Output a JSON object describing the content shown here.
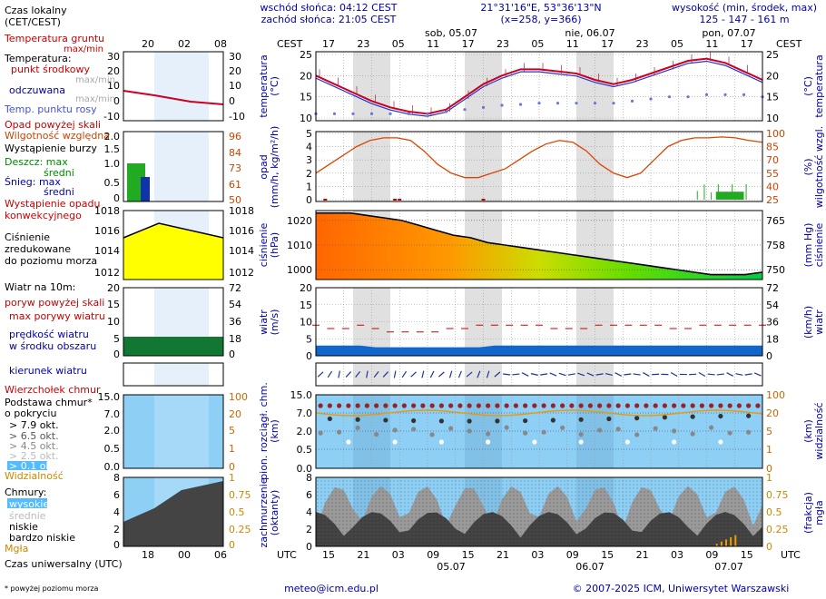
{
  "header": {
    "local_time_label": "Czas lokalny",
    "local_time_tz": "(CET/CEST)",
    "sunrise": "wschód słońca: 04:12 CEST",
    "sunset": "zachód słońca: 21:05 CEST",
    "coords": "21°31'16\"E, 53°36'13\"N",
    "grid": "(x=258,  y=366)",
    "height_label": "wysokość (min, środek, max)",
    "height_values": "125 - 147 - 161 m"
  },
  "top_axis": {
    "cest": "CEST",
    "days": [
      "sob, 05.07",
      "nie, 06.07",
      "pon, 07.07"
    ],
    "hours": [
      "17",
      "23",
      "05",
      "11",
      "17",
      "23",
      "05",
      "11",
      "17",
      "23",
      "05",
      "11",
      "17"
    ],
    "left_hours": [
      "20",
      "02",
      "08"
    ]
  },
  "bottom_axis": {
    "utc": "UTC",
    "hours": [
      "15",
      "21",
      "03",
      "09",
      "15",
      "21",
      "03",
      "09",
      "15",
      "21",
      "03",
      "09",
      "15"
    ],
    "dates": [
      "05.07",
      "06.07",
      "07.07"
    ],
    "left_hours": [
      "18",
      "00",
      "06"
    ],
    "left_label": "Czas uniwersalny (UTC)"
  },
  "legend": {
    "temp_soil": "Temperatura gruntu",
    "temp_soil_sub": "max/min",
    "temp": "Temperatura:",
    "temp_mid": "punkt środkowy",
    "temp_maxmin": "max/min",
    "temp_felt": "odczuwana",
    "temp_felt_sub": "max/min",
    "dew": "Temp. punktu rosy",
    "precip_over": "Opad powyżej skali",
    "humidity": "Wilgotność względna",
    "storm": "Wystąpienie burzy",
    "rain": "Deszcz: max",
    "rain_mid": "średni",
    "snow": "Śnieg: max",
    "snow_mid": "średni",
    "precip_occ": "Wystąpienie opadu",
    "precip_occ2": "konwekcyjnego",
    "pressure1": "Ciśnienie",
    "pressure2": "zredukowane",
    "pressure3": "do poziomu morza",
    "wind_at": "Wiatr na 10m:",
    "gust_over": "poryw powyżej skali",
    "gust_max": "max porywy wiatru",
    "wind_mean": "prędkość wiatru",
    "wind_mean2": "w środku obszaru",
    "wind_dir": "kierunek wiatru",
    "cloud_top": "Wierzchołek chmur",
    "cloud_base": "Podstawa chmur*",
    "cloud_base2": "o pokryciu",
    "okt1": "> 7.9 okt.",
    "okt2": "> 6.5 okt.",
    "okt3": "> 4.5 okt.",
    "okt4": "> 2.5 okt.",
    "okt5": "> 0.1 okt.",
    "visibility": "Widzialność",
    "clouds": "Chmury:",
    "cl_high": "wysokie",
    "cl_mid": "średnie",
    "cl_low": "niskie",
    "cl_vlow": "bardzo niskie",
    "fog": "Mgła",
    "footnote": "* powyżej poziomu morza"
  },
  "side_labels": {
    "temp_l": "temperatura",
    "temp_l2": "(°C)",
    "temp_r": "(°C)",
    "temp_r2": "temperatura",
    "precip_l": "opad",
    "precip_l2": "(mm/h, kg/m²/h)",
    "hum_r": "(%)",
    "hum_r2": "wilgotność wzgl.",
    "pres_l": "ciśnienie",
    "pres_l2": "(hPa)",
    "pres_r": "(mm Hg)",
    "pres_r2": "ciśnienie",
    "wind_l": "wiatr",
    "wind_l2": "(m/s)",
    "wind_r": "(km/h)",
    "wind_r2": "wiatr",
    "cloud_l": "pion. rozciągł. chm.",
    "cloud_l2": "(km)",
    "vis_r": "(km)",
    "vis_r2": "widzialność",
    "cov_l": "zachmurzenie",
    "cov_l2": "(oktanty)",
    "fog_r": "(frakcja)",
    "fog_r2": "mgła"
  },
  "footer": {
    "email": "meteo@icm.edu.pl",
    "copyright": "© 2007-2025 ICM, Uniwersytet Warszawski"
  },
  "chart_data": [
    {
      "type": "line",
      "title": "temperatura (°C)",
      "ylim": [
        10,
        25
      ],
      "yticks": [
        "25",
        "20",
        "15",
        "10"
      ],
      "x": [
        0,
        4,
        8,
        12,
        16,
        20,
        24,
        28,
        32,
        36,
        40,
        44,
        48,
        52,
        56,
        60,
        64,
        68,
        72,
        76,
        80,
        84,
        88,
        92,
        96
      ],
      "series": [
        {
          "name": "temperatura",
          "values": [
            20,
            18,
            16,
            14,
            12.5,
            11.5,
            11,
            12,
            15,
            18,
            20,
            21.5,
            21.5,
            21,
            20.5,
            19,
            18,
            19,
            20.5,
            22,
            23.5,
            24,
            23,
            21,
            19
          ]
        },
        {
          "name": "punkt rosy",
          "values": [
            11,
            11,
            11,
            11,
            11,
            11,
            11,
            11.5,
            12,
            12.5,
            13,
            13.2,
            13.5,
            13.5,
            13.5,
            13.5,
            13.5,
            14,
            14.5,
            15,
            15,
            15.5,
            15.5,
            15.5,
            15
          ]
        }
      ]
    },
    {
      "type": "line",
      "title": "opad (mm/h) / wilgotność (%)",
      "ylim": [
        0,
        5
      ],
      "yticks": [
        "5",
        "4",
        "3",
        "2",
        "1",
        "0"
      ],
      "right_ticks": [
        "100",
        "85",
        "70",
        "55",
        "40",
        "25"
      ],
      "series": [
        {
          "name": "wilgotność",
          "values": [
            55,
            65,
            75,
            85,
            92,
            95,
            95,
            92,
            80,
            65,
            55,
            50,
            50,
            55,
            60,
            70,
            80,
            88,
            92,
            90,
            80,
            65,
            55,
            50,
            55,
            70,
            85,
            92,
            95,
            95,
            96,
            95,
            92,
            90
          ]
        }
      ]
    },
    {
      "type": "area",
      "title": "ciśnienie (hPa)",
      "ylim": [
        996,
        1024
      ],
      "yticks": [
        "1020",
        "1010",
        "1000"
      ],
      "right_ticks": [
        "765",
        "758",
        "750"
      ],
      "series": [
        {
          "name": "ciśnienie",
          "values": [
            1023,
            1023,
            1023,
            1022,
            1021,
            1020,
            1018,
            1016,
            1014,
            1013,
            1011,
            1010,
            1009,
            1008,
            1007,
            1006,
            1005,
            1004,
            1003,
            1002,
            1001,
            1000,
            999,
            998,
            998,
            998,
            999
          ]
        }
      ]
    },
    {
      "type": "line",
      "title": "wiatr (m/s)",
      "ylim": [
        0,
        20
      ],
      "yticks": [
        "20",
        "15",
        "10",
        "5",
        "0"
      ],
      "right_ticks": [
        "72",
        "54",
        "36",
        "18",
        "0"
      ],
      "series": [
        {
          "name": "porywy",
          "values": [
            9,
            8,
            8,
            9,
            8,
            7,
            7,
            7,
            7,
            8,
            8,
            9,
            9,
            9,
            9,
            9,
            8,
            8,
            8,
            9,
            9,
            9,
            9,
            9,
            8,
            8,
            9,
            9,
            9,
            9,
            9
          ]
        },
        {
          "name": "prędkość",
          "values": [
            3,
            3,
            3,
            3,
            2.5,
            2.5,
            2.5,
            2.5,
            2.5,
            2.5,
            2.5,
            2.5,
            3,
            3,
            3,
            3,
            3,
            3,
            3,
            3,
            3,
            3,
            3,
            3,
            3,
            3,
            3,
            3,
            3,
            3,
            3
          ]
        }
      ]
    },
    {
      "type": "scatter",
      "title": "pion. rozciągł. chm. (km) / widzialność (km)",
      "yticks": [
        "15.0",
        "7.0",
        "2.0",
        "0.5",
        "0.0"
      ],
      "right_ticks": [
        "100",
        "20",
        "5",
        "1",
        "0"
      ]
    },
    {
      "type": "area",
      "title": "zachmurzenie (oktanty) / mgła (frakcja)",
      "ylim": [
        0,
        8
      ],
      "yticks": [
        "8",
        "6",
        "4",
        "2",
        "0"
      ],
      "right_ticks": [
        "1",
        "0.75",
        "0.5",
        "0.25",
        "0"
      ]
    }
  ]
}
